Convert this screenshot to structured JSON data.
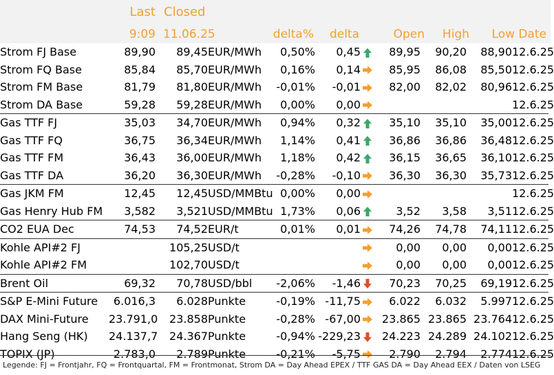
{
  "header": {
    "last_label": "Last",
    "closed_label": "Closed",
    "last_time": "9:09",
    "closed_date": "11.06.25",
    "delta_pct_label": "delta%",
    "delta_label": "delta",
    "open_label": "Open",
    "high_label": "High",
    "low_label": "Low",
    "date_label": "Date"
  },
  "colors": {
    "header_text": "#f0a030",
    "up": "#3aa76d",
    "flat": "#f0a030",
    "down": "#e0502a"
  },
  "rows": [
    {
      "name": "Strom FJ Base",
      "last": "89,90",
      "closed": "89,45",
      "unit": "EUR/MWh",
      "delta_pct": "0,50%",
      "delta": "0,45",
      "trend": "up",
      "open": "89,95",
      "high": "90,20",
      "low": "88,90",
      "date": "12.6.25",
      "sep": false
    },
    {
      "name": "Strom FQ Base",
      "last": "85,84",
      "closed": "85,70",
      "unit": "EUR/MWh",
      "delta_pct": "0,16%",
      "delta": "0,14",
      "trend": "flat",
      "open": "85,95",
      "high": "86,08",
      "low": "85,50",
      "date": "12.6.25",
      "sep": false
    },
    {
      "name": "Strom FM Base",
      "last": "81,79",
      "closed": "81,80",
      "unit": "EUR/MWh",
      "delta_pct": "-0,01%",
      "delta": "-0,01",
      "trend": "flat",
      "open": "82,00",
      "high": "82,02",
      "low": "80,96",
      "date": "12.6.25",
      "sep": false
    },
    {
      "name": "Strom DA Base",
      "last": "59,28",
      "closed": "59,28",
      "unit": "EUR/MWh",
      "delta_pct": "0,00%",
      "delta": "0,00",
      "trend": "flat",
      "open": "",
      "high": "",
      "low": "",
      "date": "12.6.25",
      "sep": false
    },
    {
      "name": "Gas TTF FJ",
      "last": "35,03",
      "closed": "34,70",
      "unit": "EUR/MWh",
      "delta_pct": "0,94%",
      "delta": "0,32",
      "trend": "up",
      "open": "35,10",
      "high": "35,10",
      "low": "35,00",
      "date": "12.6.25",
      "sep": true
    },
    {
      "name": "Gas TTF FQ",
      "last": "36,75",
      "closed": "36,34",
      "unit": "EUR/MWh",
      "delta_pct": "1,14%",
      "delta": "0,41",
      "trend": "up",
      "open": "36,86",
      "high": "36,86",
      "low": "36,48",
      "date": "12.6.25",
      "sep": false
    },
    {
      "name": "Gas TTF FM",
      "last": "36,43",
      "closed": "36,00",
      "unit": "EUR/MWh",
      "delta_pct": "1,18%",
      "delta": "0,42",
      "trend": "up",
      "open": "36,15",
      "high": "36,65",
      "low": "36,10",
      "date": "12.6.25",
      "sep": false
    },
    {
      "name": "Gas TTF DA",
      "last": "36,20",
      "closed": "36,30",
      "unit": "EUR/MWh",
      "delta_pct": "-0,28%",
      "delta": "-0,10",
      "trend": "flat",
      "open": "36,30",
      "high": "36,30",
      "low": "35,73",
      "date": "12.6.25",
      "sep": false
    },
    {
      "name": "Gas JKM FM",
      "last": "12,45",
      "closed": "12,45",
      "unit": "USD/MMBtu",
      "delta_pct": "0,00%",
      "delta": "0,00",
      "trend": "flat",
      "open": "",
      "high": "",
      "low": "",
      "date": "12.6.25",
      "sep": true
    },
    {
      "name": "Gas Henry Hub FM",
      "last": "3,582",
      "closed": "3,521",
      "unit": "USD/MMBtu",
      "delta_pct": "1,73%",
      "delta": "0,06",
      "trend": "up",
      "open": "3,52",
      "high": "3,58",
      "low": "3,51",
      "date": "12.6.25",
      "sep": false
    },
    {
      "name": "CO2 EUA Dec",
      "last": "74,53",
      "closed": "74,52",
      "unit": "EUR/t",
      "delta_pct": "0,01%",
      "delta": "0,01",
      "trend": "flat",
      "open": "74,26",
      "high": "74,78",
      "low": "74,11",
      "date": "12.6.25",
      "sep": true
    },
    {
      "name": "Kohle API#2 FJ",
      "last": "",
      "closed": "105,25",
      "unit": "USD/t",
      "delta_pct": "",
      "delta": "",
      "trend": "flat",
      "open": "0,00",
      "high": "0,00",
      "low": "0,00",
      "date": "12.6.25",
      "sep": true
    },
    {
      "name": "Kohle API#2 FM",
      "last": "",
      "closed": "102,70",
      "unit": "USD/t",
      "delta_pct": "",
      "delta": "",
      "trend": "flat",
      "open": "0,00",
      "high": "0,00",
      "low": "0,00",
      "date": "12.6.25",
      "sep": false
    },
    {
      "name": "Brent Oil",
      "last": "69,32",
      "closed": "70,78",
      "unit": "USD/bbl",
      "delta_pct": "-2,06%",
      "delta": "-1,46",
      "trend": "down",
      "open": "70,23",
      "high": "70,25",
      "low": "69,19",
      "date": "12.6.25",
      "sep": true
    },
    {
      "name": "S&P E-Mini Future",
      "last": "6.016,3",
      "closed": "6.028",
      "unit": "Punkte",
      "delta_pct": "-0,19%",
      "delta": "-11,75",
      "trend": "flat",
      "open": "6.022",
      "high": "6.032",
      "low": "5.997",
      "date": "12.6.25",
      "sep": true
    },
    {
      "name": "DAX Mini-Future",
      "last": "23.791,0",
      "closed": "23.858",
      "unit": "Punkte",
      "delta_pct": "-0,28%",
      "delta": "-67,00",
      "trend": "flat",
      "open": "23.865",
      "high": "23.865",
      "low": "23.764",
      "date": "12.6.25",
      "sep": false
    },
    {
      "name": "Hang Seng (HK)",
      "last": "24.137,7",
      "closed": "24.367",
      "unit": "Punkte",
      "delta_pct": "-0,94%",
      "delta": "-229,23",
      "trend": "down",
      "open": "24.223",
      "high": "24.289",
      "low": "24.102",
      "date": "12.6.25",
      "sep": false
    },
    {
      "name": "TOPIX (JP)",
      "last": "2.783,0",
      "closed": "2.789",
      "unit": "Punkte",
      "delta_pct": "-0,21%",
      "delta": "-5,75",
      "trend": "flat",
      "open": "2.790",
      "high": "2.794",
      "low": "2.774",
      "date": "12.6.25",
      "sep": false
    }
  ],
  "legend": "Legende: FJ = Frontjahr, FQ = Frontquartal, FM = Frontmonat, Strom DA = Day Ahead EPEX / TTF GAS DA = Day Ahead EEX / Daten von LSEG"
}
